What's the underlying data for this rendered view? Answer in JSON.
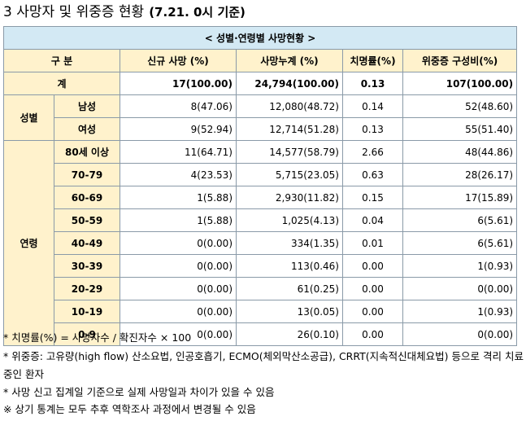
{
  "title": {
    "main": "3 사망자 및 위중증 현황",
    "date": "(7.21. 0시 기준)"
  },
  "table": {
    "caption": "< 성별·연령별 사망현황 >",
    "headers": [
      "구 분",
      "신규 사망 (%)",
      "사망누계 (%)",
      "치명률(%)",
      "위중증 구성비(%)"
    ],
    "total": {
      "label": "계",
      "new": "17(100.00)",
      "cum": "24,794(100.00)",
      "rate": "0.13",
      "severe": "107(100.00)"
    },
    "groups": [
      {
        "label": "성별",
        "rows": [
          {
            "label": "남성",
            "new": "8(47.06)",
            "cum": "12,080(48.72)",
            "rate": "0.14",
            "severe": "52(48.60)"
          },
          {
            "label": "여성",
            "new": "9(52.94)",
            "cum": "12,714(51.28)",
            "rate": "0.13",
            "severe": "55(51.40)"
          }
        ]
      },
      {
        "label": "연령",
        "rows": [
          {
            "label": "80세 이상",
            "new": "11(64.71)",
            "cum": "14,577(58.79)",
            "rate": "2.66",
            "severe": "48(44.86)"
          },
          {
            "label": "70-79",
            "new": "4(23.53)",
            "cum": "5,715(23.05)",
            "rate": "0.63",
            "severe": "28(26.17)"
          },
          {
            "label": "60-69",
            "new": "1(5.88)",
            "cum": "2,930(11.82)",
            "rate": "0.15",
            "severe": "17(15.89)"
          },
          {
            "label": "50-59",
            "new": "1(5.88)",
            "cum": "1,025(4.13)",
            "rate": "0.04",
            "severe": "6(5.61)"
          },
          {
            "label": "40-49",
            "new": "0(0.00)",
            "cum": "334(1.35)",
            "rate": "0.01",
            "severe": "6(5.61)"
          },
          {
            "label": "30-39",
            "new": "0(0.00)",
            "cum": "113(0.46)",
            "rate": "0.00",
            "severe": "1(0.93)"
          },
          {
            "label": "20-29",
            "new": "0(0.00)",
            "cum": "61(0.25)",
            "rate": "0.00",
            "severe": "0(0.00)"
          },
          {
            "label": "10-19",
            "new": "0(0.00)",
            "cum": "13(0.05)",
            "rate": "0.00",
            "severe": "1(0.93)"
          },
          {
            "label": "0-9",
            "new": "0(0.00)",
            "cum": "26(0.10)",
            "rate": "0.00",
            "severe": "0(0.00)"
          }
        ]
      }
    ]
  },
  "notes": [
    "* 치명률(%) = 사망자수 / 확진자수 × 100",
    "* 위중증: 고유량(high flow) 산소요법, 인공호흡기, ECMO(체외막산소공급), CRRT(지속적신대체요법) 등으로 격리 치료 중인 환자",
    "* 사망 신고 집계일 기준으로 실제 사망일과 차이가 있을 수 있음",
    "※ 상기 통계는 모두 추후 역학조사 과정에서 변경될 수 있음"
  ]
}
